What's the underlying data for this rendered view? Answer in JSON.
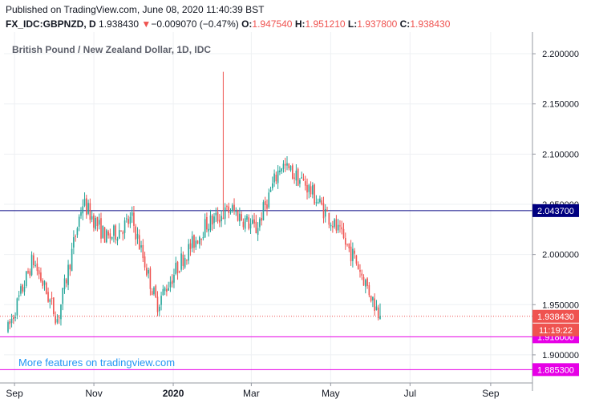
{
  "header": {
    "published": "Published on TradingView.com, June 08, 2020 11:40:39 BST",
    "symbol": "FX_IDC:GBPNZD, D",
    "last": "1.938430",
    "change_arrow": "▼",
    "change": "−0.009070 (−0.47%)",
    "o_label": "O:",
    "o_value": "1.947540",
    "h_label": "H:",
    "h_value": "1.951210",
    "l_label": "L:",
    "l_value": "1.937800",
    "c_label": "C:",
    "c_value": "1.938430"
  },
  "watermark": "More features on tradingview.com",
  "colors": {
    "up": "#26a69a",
    "down": "#ef5350",
    "navy_line": "#000080",
    "magenta_line": "#e600e6",
    "price_line": "#ef5350",
    "grid": "#eef0f3",
    "axis_text": "#131722",
    "watermark": "#2196f3"
  },
  "chart_data": {
    "type": "candlestick",
    "title": "British Pound / New Zealand Dollar, 1D, IDC",
    "y_ticks": [
      "2.200000",
      "2.150000",
      "2.100000",
      "2.050000",
      "2.000000",
      "1.950000",
      "1.900000"
    ],
    "x_ticks": [
      "Sep",
      "Nov",
      "2020",
      "Mar",
      "May",
      "Jul",
      "Sep"
    ],
    "ylim": [
      1.872,
      2.22
    ],
    "grid": true,
    "horizontal_lines": [
      {
        "price": 2.0437,
        "label": "2.043700",
        "color": "#000080",
        "style": "solid"
      },
      {
        "price": 1.918,
        "label": "1.918000",
        "color": "#e600e6",
        "style": "solid"
      },
      {
        "price": 1.8853,
        "label": "1.885300",
        "color": "#e600e6",
        "style": "solid"
      },
      {
        "price": 1.93843,
        "label": "1.938430",
        "color": "#ef5350",
        "style": "dotted"
      }
    ],
    "countdown_label": "11:19:22",
    "period": {
      "start": "2019-08-27",
      "end": "2020-06-08",
      "sessions": 205
    },
    "phases": [
      {
        "label": "late Aug 2019",
        "price": 1.925
      },
      {
        "label": "mid Sep 2019",
        "price": 1.995
      },
      {
        "label": "mid Oct 2019",
        "price": 1.935
      },
      {
        "label": "late Oct 2019",
        "price": 2.052
      },
      {
        "label": "Nov 2019",
        "price": 2.015
      },
      {
        "label": "early Dec 2019",
        "price": 2.035
      },
      {
        "label": "mid Dec 2019",
        "price": 1.95
      },
      {
        "label": "Jan 2020",
        "price": 1.995
      },
      {
        "label": "Feb 2020",
        "price": 2.03
      },
      {
        "label": "early Mar 2020",
        "price": 2.045
      },
      {
        "label": "mid Mar 2020",
        "price": 2.025
      },
      {
        "label": "late Mar 2020",
        "price": 2.09
      },
      {
        "label": "Apr 2020",
        "price": 2.07
      },
      {
        "label": "late Apr 2020",
        "price": 2.035
      },
      {
        "label": "mid May 2020",
        "price": 1.995
      },
      {
        "label": "Jun 8 2020",
        "price": 1.93843
      }
    ]
  }
}
